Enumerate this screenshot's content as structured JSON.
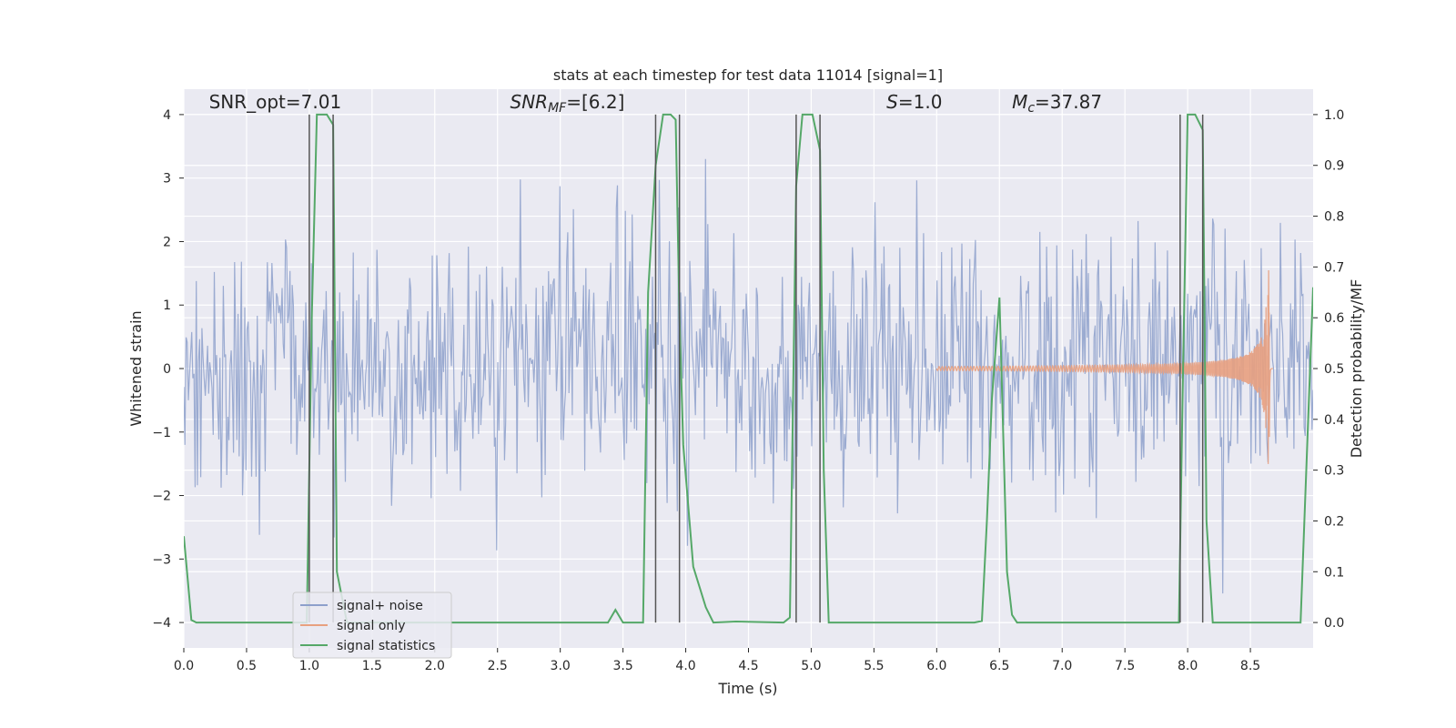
{
  "chart_data": {
    "type": "line",
    "title": "stats at each timestep for test data 11014 [signal=1]",
    "xlabel": "Time (s)",
    "ylabel": "Whitened strain",
    "ylabel_right": "Detection probability/MF",
    "xlim": [
      0.0,
      9.0
    ],
    "ylim": [
      -4.4,
      4.4
    ],
    "ylim_right": [
      -0.05,
      1.05
    ],
    "xticks": [
      0.0,
      0.5,
      1.0,
      1.5,
      2.0,
      2.5,
      3.0,
      3.5,
      4.0,
      4.5,
      5.0,
      5.5,
      6.0,
      6.5,
      7.0,
      7.5,
      8.0,
      8.5
    ],
    "xtick_labels": [
      "0.0",
      "0.5",
      "1.0",
      "1.5",
      "2.0",
      "2.5",
      "3.0",
      "3.5",
      "4.0",
      "4.5",
      "5.0",
      "5.5",
      "6.0",
      "6.5",
      "7.0",
      "7.5",
      "8.0",
      "8.5"
    ],
    "yticks": [
      4,
      3,
      2,
      1,
      0,
      -1,
      -2,
      -3,
      -4
    ],
    "ytick_labels": [
      "4",
      "3",
      "2",
      "1",
      "0",
      "−1",
      "−2",
      "−3",
      "−4"
    ],
    "yticks_right": [
      1.0,
      0.9,
      0.8,
      0.7,
      0.6,
      0.5,
      0.4,
      0.3,
      0.2,
      0.1,
      0.0
    ],
    "ytick_labels_right": [
      "1.0",
      "0.9",
      "0.8",
      "0.7",
      "0.6",
      "0.5",
      "0.4",
      "0.3",
      "0.2",
      "0.1",
      "0.0"
    ],
    "grid": true,
    "legend_position": "lower-left",
    "annotations": [
      {
        "text": "SNR_opt=7.01",
        "x": 0.2,
        "y": 4.1
      },
      {
        "text": "SNR_MF=[6.2]",
        "x": 2.6,
        "y": 4.1
      },
      {
        "text": "S=1.0",
        "x": 5.6,
        "y": 4.1
      },
      {
        "text": "M_c=37.87",
        "x": 6.6,
        "y": 4.1
      }
    ],
    "vertical_lines": [
      1.0,
      1.19,
      3.76,
      3.95,
      4.88,
      5.07,
      7.94,
      8.12
    ],
    "series": [
      {
        "name": "signal+ noise",
        "color": "#8da0cb",
        "kind": "noise",
        "sigma": 1.0,
        "n_points": 1000,
        "x_range": [
          0.0,
          9.0
        ]
      },
      {
        "name": "signal only",
        "color": "#e8a07f",
        "kind": "chirp",
        "t_merge": 8.65,
        "peak_amplitude": 1.6,
        "min_amplitude": -1.8,
        "x_range": [
          6.0,
          8.68
        ]
      },
      {
        "name": "signal statistics",
        "color": "#55a868",
        "kind": "line",
        "x": [
          0.0,
          0.06,
          0.1,
          0.9,
          0.98,
          1.02,
          1.06,
          1.14,
          1.19,
          1.22,
          1.3,
          2.0,
          3.0,
          3.38,
          3.44,
          3.5,
          3.66,
          3.7,
          3.76,
          3.82,
          3.88,
          3.92,
          3.95,
          3.98,
          4.06,
          4.16,
          4.22,
          4.4,
          4.78,
          4.83,
          4.88,
          4.93,
          4.97,
          5.01,
          5.07,
          5.1,
          5.14,
          5.5,
          6.0,
          6.3,
          6.36,
          6.4,
          6.44,
          6.5,
          6.56,
          6.6,
          6.64,
          7.0,
          7.5,
          7.93,
          7.96,
          8.0,
          8.06,
          8.12,
          8.15,
          8.2,
          8.5,
          8.9,
          9.0
        ],
        "y": [
          0.17,
          0.005,
          0.0,
          0.0,
          0.0,
          0.6,
          1.0,
          1.0,
          0.98,
          0.1,
          0.0,
          0.0,
          0.0,
          0.0,
          0.025,
          0.0,
          0.0,
          0.65,
          0.9,
          1.0,
          1.0,
          0.99,
          0.6,
          0.35,
          0.11,
          0.03,
          0.0,
          0.002,
          0.0,
          0.01,
          0.86,
          1.0,
          1.0,
          1.0,
          0.93,
          0.3,
          0.0,
          0.0,
          0.0,
          0.0,
          0.003,
          0.2,
          0.44,
          0.64,
          0.1,
          0.015,
          0.0,
          0.0,
          0.0,
          0.0,
          0.45,
          1.0,
          1.0,
          0.97,
          0.2,
          0.0,
          0.0,
          0.0,
          0.66
        ]
      }
    ]
  }
}
